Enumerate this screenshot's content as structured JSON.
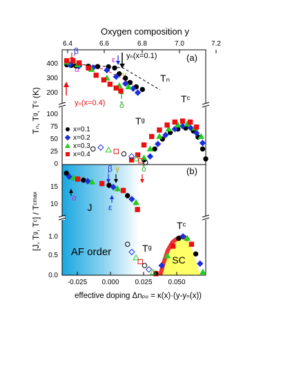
{
  "top_axis_label": "Oxygen composition y",
  "top_ticks": [
    "6.4",
    "6.6",
    "6.8",
    "7.0",
    "7.2"
  ],
  "panel_a": {
    "tag": "(a)",
    "ylabel": "Tₙ, Tᵍ, Tᶜ (K)",
    "yticks": [
      "400",
      "300",
      "200",
      "100",
      "75",
      "50",
      "25",
      "0"
    ],
    "labels": {
      "tn": "Tₙ",
      "tc": "Tᶜ",
      "tg": "Tᵍ"
    },
    "annotations": {
      "yn01": "yₙ(x=0.1)",
      "yn04": "yₙ(x=0.4)",
      "alpha": "α",
      "beta": "β",
      "gamma": "γ",
      "delta": "δ",
      "epsilon": "ε"
    },
    "legend": [
      "x=0.1",
      "x=0.2",
      "x=0.3",
      "x=0.4"
    ]
  },
  "panel_b": {
    "tag": "(b)",
    "ylabel": "[J, Tᵍ, Tᶜ] / Tᶜᵐᵃˣ",
    "yticks": [
      "15",
      "10",
      "1.0",
      "0.5",
      "0.0"
    ],
    "labels": {
      "af": "AF order",
      "j": "J",
      "sc": "SC",
      "tc": "Tᶜ",
      "tg": "Tᵍ"
    },
    "annotations": {
      "alpha": "α",
      "beta": "β",
      "gamma": "γ",
      "delta": "δ",
      "epsilon": "ε"
    }
  },
  "bottom_ticks": [
    "-0.025",
    "0.000",
    "0.025",
    "0.050"
  ],
  "bottom_axis_label": "effective doping Δnₚₒ = κ(x)·(y-yₙ(x))",
  "chart_data": {
    "type": "scatter",
    "series_colors": {
      "x=0.1": "#000000",
      "x=0.2": "#1a2fd8",
      "x=0.3": "#22cc22",
      "x=0.4": "#e81010"
    },
    "panel_a": {
      "xlabel": "Oxygen composition y",
      "ylabel": "Tₙ, Tᵍ, Tᶜ (K)",
      "xlim": [
        6.35,
        7.28
      ],
      "series": [
        {
          "name": "x=0.1",
          "tn": [
            [
              6.38,
              392
            ],
            [
              6.41,
              388
            ],
            [
              6.44,
              384
            ],
            [
              6.52,
              382
            ],
            [
              6.58,
              380
            ],
            [
              6.65,
              378
            ],
            [
              6.69,
              370
            ],
            [
              6.72,
              330
            ],
            [
              6.76,
              300
            ],
            [
              6.79,
              270
            ],
            [
              6.83,
              240
            ],
            [
              6.87,
              222
            ]
          ],
          "tc": [
            [
              6.88,
              8
            ],
            [
              6.95,
              30
            ],
            [
              7.0,
              50
            ],
            [
              7.05,
              63
            ],
            [
              7.1,
              70
            ],
            [
              7.15,
              72
            ],
            [
              7.2,
              66
            ],
            [
              7.23,
              54
            ],
            [
              7.26,
              30
            ],
            [
              7.28,
              10
            ]
          ]
        },
        {
          "name": "x=0.2",
          "tn": [
            [
              6.4,
              392
            ],
            [
              6.46,
              384
            ],
            [
              6.55,
              372
            ],
            [
              6.64,
              355
            ],
            [
              6.7,
              310
            ],
            [
              6.76,
              262
            ],
            [
              6.81,
              228
            ],
            [
              6.84,
              200
            ]
          ],
          "tc": [
            [
              6.92,
              15
            ],
            [
              6.97,
              40
            ],
            [
              7.02,
              58
            ],
            [
              7.08,
              70
            ],
            [
              7.13,
              76
            ],
            [
              7.18,
              73
            ],
            [
              7.22,
              62
            ],
            [
              7.26,
              42
            ]
          ]
        },
        {
          "name": "x=0.3",
          "tn": [
            [
              6.38,
              410
            ],
            [
              6.45,
              392
            ],
            [
              6.54,
              360
            ],
            [
              6.64,
              300
            ],
            [
              6.72,
              248
            ],
            [
              6.78,
              240
            ]
          ],
          "tc": [
            [
              6.88,
              12
            ],
            [
              6.92,
              30
            ],
            [
              6.98,
              55
            ],
            [
              7.04,
              70
            ],
            [
              7.1,
              78
            ],
            [
              7.16,
              80
            ],
            [
              7.21,
              72
            ],
            [
              7.25,
              55
            ]
          ]
        },
        {
          "name": "x=0.4",
          "tn": [
            [
              6.38,
              420
            ],
            [
              6.42,
              420
            ],
            [
              6.46,
              405
            ],
            [
              6.52,
              370
            ],
            [
              6.57,
              320
            ],
            [
              6.62,
              288
            ],
            [
              6.66,
              258
            ],
            [
              6.7,
              232
            ],
            [
              6.73,
              212
            ]
          ],
          "tc": [
            [
              6.8,
              8
            ],
            [
              6.84,
              18
            ],
            [
              6.88,
              38
            ],
            [
              6.93,
              55
            ],
            [
              6.98,
              68
            ],
            [
              7.03,
              78
            ],
            [
              7.08,
              84
            ],
            [
              7.13,
              86
            ],
            [
              7.18,
              84
            ],
            [
              7.22,
              74
            ]
          ]
        }
      ],
      "tg": [
        [
          6.55,
          30
        ],
        [
          6.6,
          33
        ],
        [
          6.65,
          28
        ],
        [
          6.7,
          25
        ],
        [
          6.75,
          20
        ],
        [
          6.8,
          15
        ],
        [
          6.83,
          10
        ],
        [
          6.86,
          6
        ],
        [
          6.89,
          3
        ]
      ]
    },
    "panel_b": {
      "xlabel": "effective doping Δnₚₒ = κ(x)·(y-yₙ(x))",
      "ylabel": "[J, Tᵍ, Tᶜ] / Tᶜᵐᵃˣ",
      "xlim": [
        -0.033,
        0.068
      ],
      "j": [
        [
          -0.03,
          19.5
        ],
        [
          -0.028,
          18.5
        ],
        [
          -0.025,
          18.2
        ],
        [
          -0.022,
          17.8
        ],
        [
          -0.018,
          17.5
        ],
        [
          -0.015,
          17.2
        ],
        [
          -0.012,
          17.0
        ],
        [
          -0.005,
          16.5
        ],
        [
          0.0,
          16.0
        ],
        [
          0.003,
          15.5
        ],
        [
          0.006,
          15.0
        ],
        [
          0.01,
          14.5
        ],
        [
          0.013,
          13.0
        ],
        [
          0.016,
          12.0
        ],
        [
          0.019,
          11.0
        ],
        [
          0.02,
          9.0
        ]
      ],
      "tc": [
        [
          0.033,
          0.05
        ],
        [
          0.037,
          0.25
        ],
        [
          0.041,
          0.5
        ],
        [
          0.045,
          0.75
        ],
        [
          0.049,
          0.95
        ],
        [
          0.052,
          1.0
        ],
        [
          0.055,
          0.95
        ],
        [
          0.058,
          0.8
        ],
        [
          0.061,
          0.55
        ],
        [
          0.064,
          0.3
        ],
        [
          0.066,
          0.08
        ]
      ],
      "tg": [
        [
          0.013,
          0.8
        ],
        [
          0.016,
          0.6
        ],
        [
          0.019,
          0.45
        ],
        [
          0.022,
          0.35
        ],
        [
          0.025,
          0.25
        ],
        [
          0.028,
          0.15
        ],
        [
          0.031,
          0.08
        ],
        [
          0.033,
          0.04
        ]
      ]
    }
  }
}
